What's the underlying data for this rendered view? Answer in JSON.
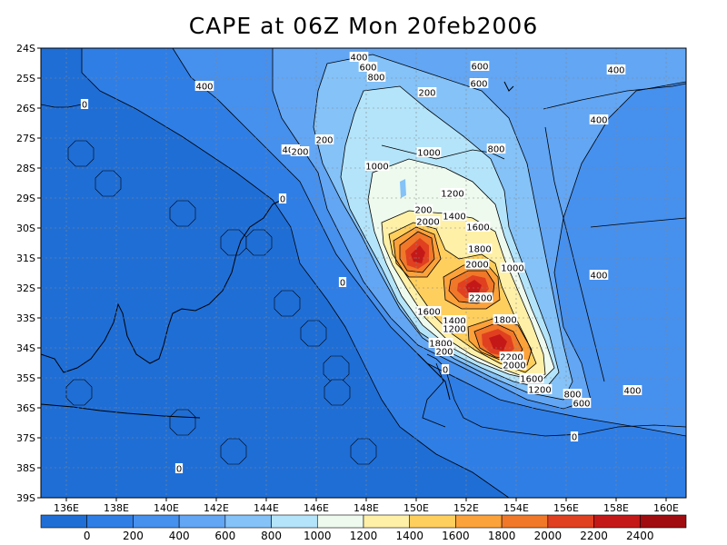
{
  "title": "CAPE at 06Z Mon 20feb2006",
  "lat_ticks": [
    "24S",
    "25S",
    "26S",
    "27S",
    "28S",
    "29S",
    "30S",
    "31S",
    "32S",
    "33S",
    "34S",
    "35S",
    "36S",
    "37S",
    "38S",
    "39S"
  ],
  "lon_ticks": [
    "136E",
    "138E",
    "140E",
    "142E",
    "144E",
    "146E",
    "148E",
    "150E",
    "152E",
    "154E",
    "156E",
    "158E",
    "160E"
  ],
  "colorbar": {
    "labels": [
      "0",
      "200",
      "400",
      "600",
      "800",
      "1000",
      "1200",
      "1400",
      "1600",
      "1800",
      "2000",
      "2200",
      "2400"
    ],
    "colors": [
      "#1f6ed6",
      "#2f7ee6",
      "#4690ee",
      "#62a6f4",
      "#84c2f8",
      "#b4e4fa",
      "#eefaee",
      "#fff0a8",
      "#ffcf5e",
      "#fca23a",
      "#f07828",
      "#e04020",
      "#c41818",
      "#a00c10"
    ]
  },
  "contour_labels": [
    {
      "text": "400"
    },
    {
      "text": "600"
    },
    {
      "text": "800"
    },
    {
      "text": "400"
    },
    {
      "text": "600"
    },
    {
      "text": "600"
    },
    {
      "text": "400"
    },
    {
      "text": "200"
    },
    {
      "text": "0"
    },
    {
      "text": "400"
    },
    {
      "text": "200"
    },
    {
      "text": "400"
    },
    {
      "text": "200"
    },
    {
      "text": "1000"
    },
    {
      "text": "800"
    },
    {
      "text": "1000"
    },
    {
      "text": "0"
    },
    {
      "text": "1200"
    },
    {
      "text": "1400"
    },
    {
      "text": "2000"
    },
    {
      "text": "1600"
    },
    {
      "text": "200"
    },
    {
      "text": "1800"
    },
    {
      "text": "2000"
    },
    {
      "text": "1000"
    },
    {
      "text": "0"
    },
    {
      "text": "2200"
    },
    {
      "text": "400"
    },
    {
      "text": "1600"
    },
    {
      "text": "1400"
    },
    {
      "text": "1800"
    },
    {
      "text": "1200"
    },
    {
      "text": "1800"
    },
    {
      "text": "2200"
    },
    {
      "text": "2000"
    },
    {
      "text": "200"
    },
    {
      "text": "0"
    },
    {
      "text": "1600"
    },
    {
      "text": "1200"
    },
    {
      "text": "800"
    },
    {
      "text": "600"
    },
    {
      "text": "400"
    },
    {
      "text": "0"
    },
    {
      "text": "0"
    }
  ]
}
